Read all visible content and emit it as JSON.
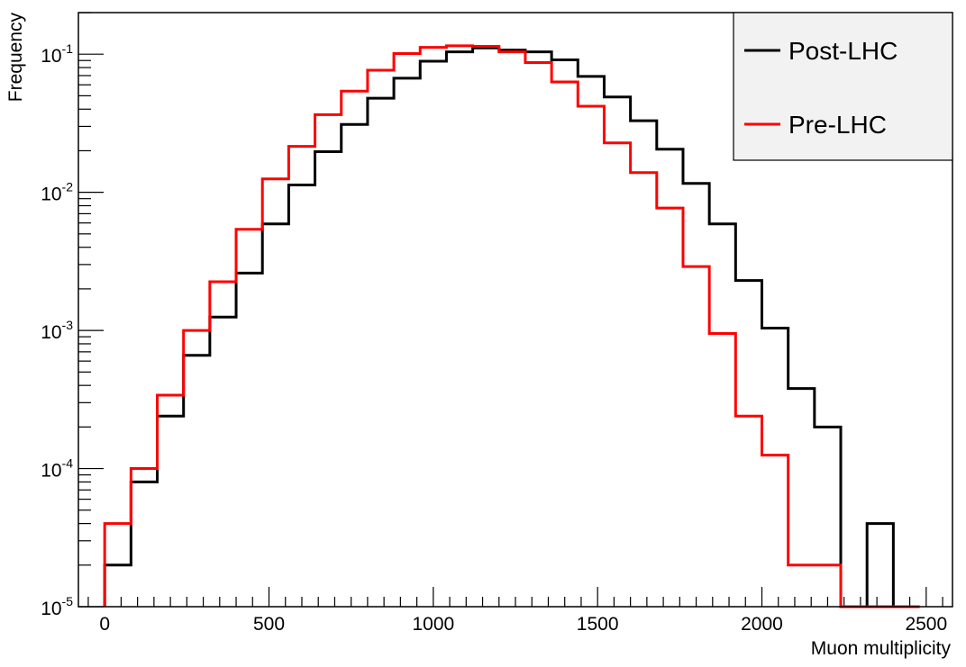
{
  "chart_data": {
    "type": "line",
    "title": "",
    "xlabel": "Muon multiplicity",
    "ylabel": "Frequency",
    "xlim": [
      -80,
      2580
    ],
    "ylim": [
      1e-05,
      0.2
    ],
    "yscale": "log",
    "x_ticks": [
      0,
      500,
      1000,
      1500,
      2000,
      2500
    ],
    "x_tick_labels": [
      "0",
      "500",
      "1000",
      "1500",
      "2000",
      "2500"
    ],
    "y_ticks": [
      1e-05,
      0.0001,
      0.001,
      0.01,
      0.1
    ],
    "y_tick_labels": [
      {
        "base": "10",
        "exp": "-5"
      },
      {
        "base": "10",
        "exp": "-4"
      },
      {
        "base": "10",
        "exp": "-3"
      },
      {
        "base": "10",
        "exp": "-2"
      },
      {
        "base": "10",
        "exp": "-1"
      }
    ],
    "grid": false,
    "legend_position": "top-right",
    "bin_edges": [
      0,
      80,
      160,
      240,
      320,
      400,
      480,
      560,
      640,
      720,
      800,
      880,
      960,
      1040,
      1120,
      1200,
      1280,
      1360,
      1440,
      1520,
      1600,
      1680,
      1760,
      1840,
      1920,
      2000,
      2080,
      2160,
      2240,
      2320,
      2400,
      2480
    ],
    "series": [
      {
        "name": "Post-LHC",
        "color": "#000000",
        "values": [
          2e-05,
          8e-05,
          0.00024,
          0.00066,
          0.00125,
          0.0026,
          0.0059,
          0.0113,
          0.0197,
          0.031,
          0.048,
          0.067,
          0.089,
          0.104,
          0.111,
          0.107,
          0.104,
          0.091,
          0.069,
          0.049,
          0.033,
          0.0205,
          0.0116,
          0.0059,
          0.0023,
          0.00104,
          0.00038,
          0.0002,
          1e-05,
          4e-05,
          1e-05
        ]
      },
      {
        "name": "Pre-LHC",
        "color": "#ff0000",
        "values": [
          4e-05,
          0.0001,
          0.00034,
          0.001,
          0.00225,
          0.0054,
          0.0125,
          0.0215,
          0.0365,
          0.054,
          0.0765,
          0.101,
          0.112,
          0.115,
          0.114,
          0.104,
          0.087,
          0.063,
          0.042,
          0.0228,
          0.0139,
          0.0077,
          0.0029,
          0.00095,
          0.00024,
          0.000125,
          2e-05,
          2e-05,
          1e-05,
          1e-05,
          1e-05
        ]
      }
    ]
  },
  "colors": {
    "frame": "#000000",
    "legend_background": "#f2f2f2"
  }
}
